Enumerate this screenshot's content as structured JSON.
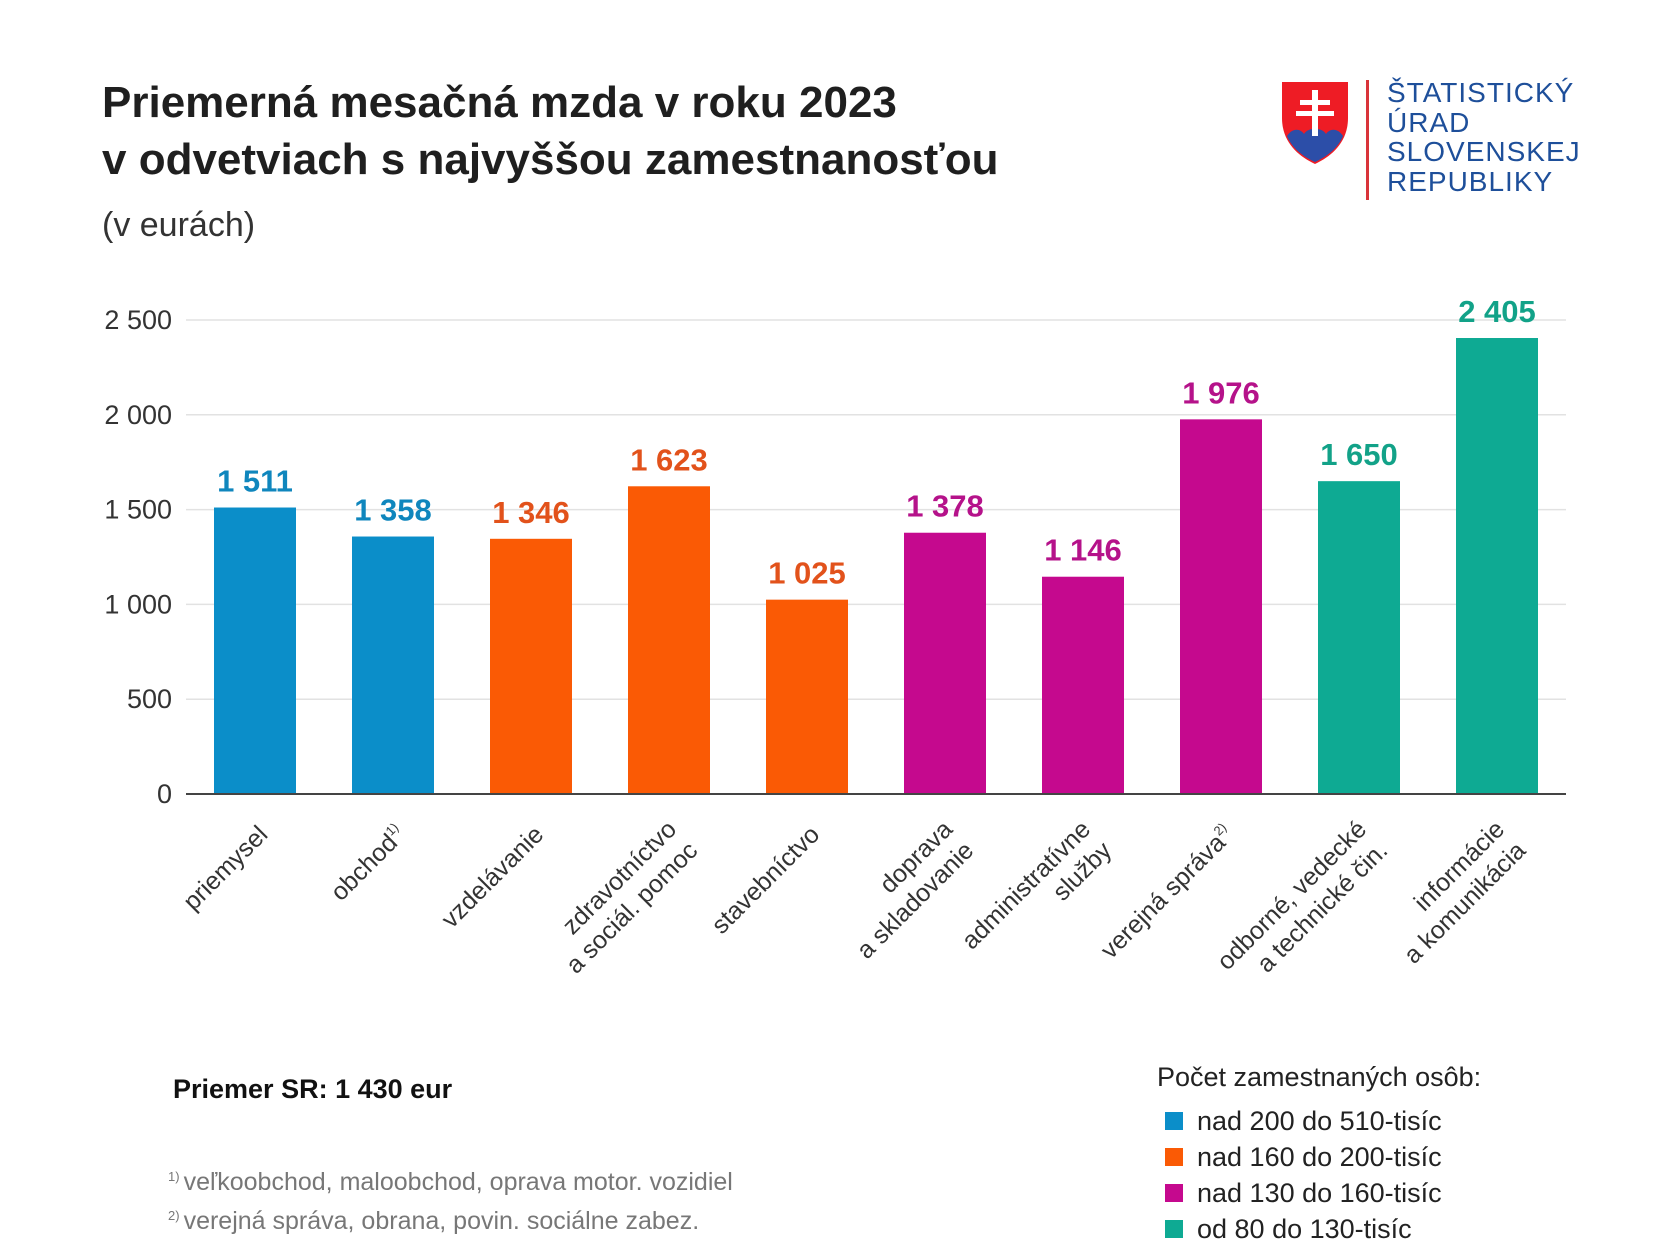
{
  "header": {
    "title_line1": "Priemerná mesačná mzda v roku 2023",
    "title_line2": "v odvetviach s najvyššou zamestnanosťou",
    "subtitle": "(v eurách)"
  },
  "logo": {
    "line1": "ŠTATISTICKÝ",
    "line2": "ÚRAD",
    "line3": "SLOVENSKEJ",
    "line4": "REPUBLIKY"
  },
  "chart_data": {
    "type": "bar",
    "title": "Priemerná mesačná mzda v roku 2023 v odvetviach s najvyššou zamestnanosťou",
    "ylabel": "(v eurách)",
    "xlabel": "",
    "ylim": [
      0,
      2500
    ],
    "yticks": [
      0,
      500,
      1000,
      1500,
      2000,
      2500
    ],
    "ytick_labels": [
      "0",
      "500",
      "1 000",
      "1 500",
      "2 000",
      "2 500"
    ],
    "grid": true,
    "categories": [
      {
        "lines": [
          "priemysel"
        ],
        "sup": ""
      },
      {
        "lines": [
          "obchod"
        ],
        "sup": "1)"
      },
      {
        "lines": [
          "vzdelávanie"
        ],
        "sup": ""
      },
      {
        "lines": [
          "zdravotníctvo",
          "a sociál. pomoc"
        ],
        "sup": ""
      },
      {
        "lines": [
          "stavebníctvo"
        ],
        "sup": ""
      },
      {
        "lines": [
          "doprava",
          "a skladovanie"
        ],
        "sup": ""
      },
      {
        "lines": [
          "administratívne",
          "služby"
        ],
        "sup": ""
      },
      {
        "lines": [
          "verejná správa"
        ],
        "sup": "2)"
      },
      {
        "lines": [
          "odborné, vedecké",
          "a technické čin."
        ],
        "sup": ""
      },
      {
        "lines": [
          "informácie",
          "a komunikácia"
        ],
        "sup": ""
      }
    ],
    "values": [
      1511,
      1358,
      1346,
      1623,
      1025,
      1378,
      1146,
      1976,
      1650,
      2405
    ],
    "value_labels": [
      "1 511",
      "1 358",
      "1 346",
      "1 623",
      "1 025",
      "1 378",
      "1 146",
      "1 976",
      "1 650",
      "2 405"
    ],
    "groups": [
      0,
      0,
      1,
      1,
      1,
      2,
      2,
      2,
      3,
      3
    ],
    "legend": {
      "title": "Počet zamestnaných osôb:",
      "items": [
        {
          "label": "nad 200 do 510-tisíc",
          "color": "#0b8ec9"
        },
        {
          "label": "nad 160 do 200-tisíc",
          "color": "#fa5a05"
        },
        {
          "label": "nad 130 do 160-tisíc",
          "color": "#c5098e"
        },
        {
          "label": "od 80 do 130-tisíc",
          "color": "#0eaa93"
        }
      ]
    },
    "label_colors": [
      "#0f86bd",
      "#e2521b",
      "#b5128a",
      "#12a288"
    ]
  },
  "notes": {
    "average": "Priemer SR: 1 430 eur",
    "footnote1_mark": "1)",
    "footnote1": "veľkoobchod, maloobchod, oprava motor. vozidiel",
    "footnote2_mark": "2)",
    "footnote2": "verejná správa, obrana, povin. sociálne zabez."
  }
}
